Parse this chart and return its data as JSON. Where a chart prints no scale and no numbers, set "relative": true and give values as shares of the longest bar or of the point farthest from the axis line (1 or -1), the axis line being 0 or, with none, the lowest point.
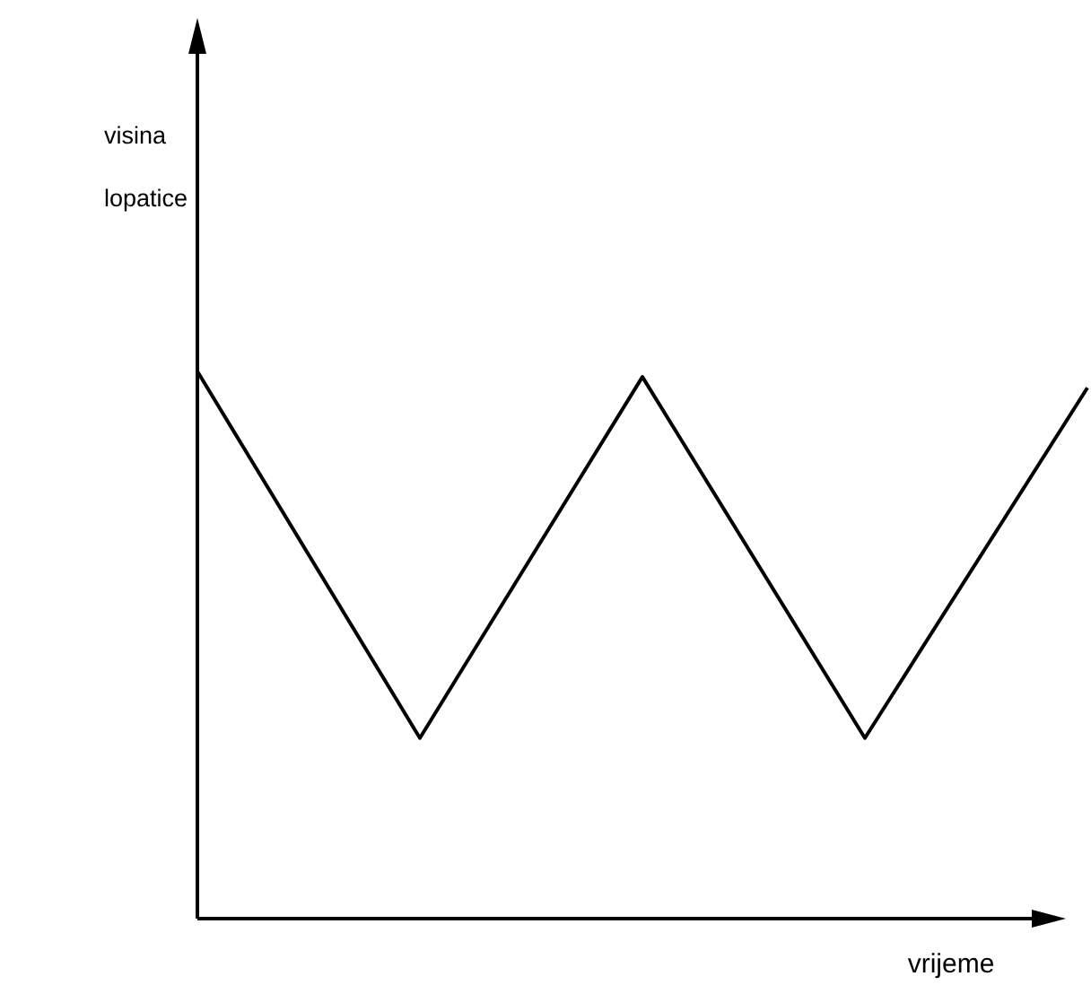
{
  "chart_data": {
    "type": "line",
    "xlabel": "vrijeme",
    "ylabel": "visina lopatice",
    "relative": true,
    "categories": [
      null,
      null,
      null,
      null,
      null
    ],
    "series": [
      {
        "color": "#000000",
        "values": [
          1,
          0.33,
          0.99,
          0.33,
          0.97
        ]
      }
    ]
  }
}
